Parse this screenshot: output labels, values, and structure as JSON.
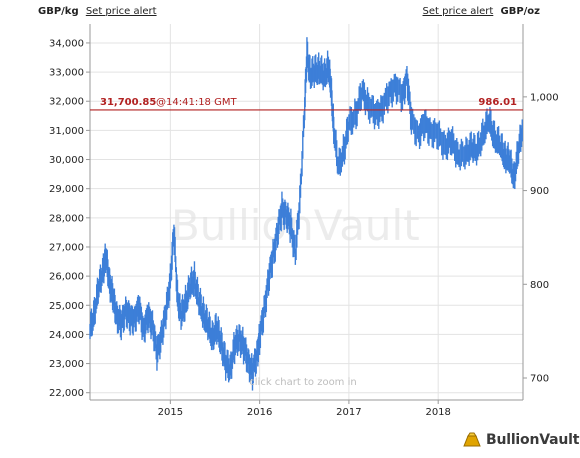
{
  "header": {
    "left_unit": "GBP/kg",
    "left_link": "Set price alert",
    "right_link": "Set price alert",
    "right_unit": "GBP/oz"
  },
  "watermark": "BullionVault",
  "zoom_hint": "click chart to zoom in",
  "logo_text": "BullionVault",
  "current_price": {
    "kg_value": "31,700.85",
    "time": "@14:41:18 GMT",
    "oz_value": "986.01",
    "value": 31700.85,
    "color": "#b22222"
  },
  "chart_data": {
    "type": "line",
    "title": "",
    "xlabel": "",
    "ylabel": "",
    "series_color": "#3d7fd8",
    "grid": true,
    "xlim": [
      2014.1,
      2018.95
    ],
    "ylim": [
      21750,
      34650
    ],
    "x_ticks": [
      {
        "value": 2015,
        "label": "2015"
      },
      {
        "value": 2016,
        "label": "2016"
      },
      {
        "value": 2017,
        "label": "2017"
      },
      {
        "value": 2018,
        "label": "2018"
      }
    ],
    "y_left_ticks": [
      {
        "value": 22000,
        "label": "22,000"
      },
      {
        "value": 23000,
        "label": "23,000"
      },
      {
        "value": 24000,
        "label": "24,000"
      },
      {
        "value": 25000,
        "label": "25,000"
      },
      {
        "value": 26000,
        "label": "26,000"
      },
      {
        "value": 27000,
        "label": "27,000"
      },
      {
        "value": 28000,
        "label": "28,000"
      },
      {
        "value": 29000,
        "label": "29,000"
      },
      {
        "value": 30000,
        "label": "30,000"
      },
      {
        "value": 31000,
        "label": "31,000"
      },
      {
        "value": 32000,
        "label": "32,000"
      },
      {
        "value": 33000,
        "label": "33,000"
      },
      {
        "value": 34000,
        "label": "34,000"
      }
    ],
    "y_right_ticks": [
      {
        "value": 700,
        "label": "700"
      },
      {
        "value": 800,
        "label": "800"
      },
      {
        "value": 900,
        "label": "900"
      },
      {
        "value": 1000,
        "label": "1,000"
      }
    ],
    "right_axis_factor": 32.15,
    "series": [
      {
        "x": [
          2014.1,
          2014.15,
          2014.2,
          2014.25,
          2014.28,
          2014.32,
          2014.36,
          2014.4,
          2014.45,
          2014.5,
          2014.55,
          2014.6,
          2014.65,
          2014.7,
          2014.75,
          2014.8,
          2014.85,
          2014.9,
          2014.95,
          2015.0,
          2015.04,
          2015.08,
          2015.12,
          2015.17,
          2015.22,
          2015.27,
          2015.32,
          2015.37,
          2015.42,
          2015.47,
          2015.52,
          2015.57,
          2015.62,
          2015.67,
          2015.72,
          2015.77,
          2015.82,
          2015.87,
          2015.92,
          2015.97,
          2016.0,
          2016.05,
          2016.1,
          2016.15,
          2016.2,
          2016.25,
          2016.3,
          2016.35,
          2016.4,
          2016.45,
          2016.5,
          2016.53,
          2016.57,
          2016.62,
          2016.67,
          2016.72,
          2016.77,
          2016.8,
          2016.83,
          2016.88,
          2016.95,
          2017.0,
          2017.08,
          2017.15,
          2017.22,
          2017.3,
          2017.37,
          2017.45,
          2017.52,
          2017.6,
          2017.65,
          2017.7,
          2017.78,
          2017.85,
          2017.92,
          2018.0,
          2018.08,
          2018.15,
          2018.22,
          2018.3,
          2018.37,
          2018.43,
          2018.5,
          2018.57,
          2018.63,
          2018.7,
          2018.75,
          2018.8,
          2018.85,
          2018.9,
          2018.95
        ],
        "values": [
          24100,
          24800,
          25600,
          26300,
          26600,
          25800,
          25200,
          24700,
          24300,
          24900,
          24500,
          24600,
          24900,
          24200,
          24600,
          24400,
          23300,
          24000,
          24700,
          25900,
          27500,
          25300,
          24600,
          25100,
          25600,
          25900,
          25100,
          24700,
          24300,
          23900,
          24200,
          23700,
          23000,
          22800,
          23600,
          23900,
          23600,
          23100,
          22700,
          23300,
          23900,
          24800,
          25900,
          26700,
          27500,
          28300,
          28100,
          27700,
          26800,
          28500,
          31500,
          33600,
          32900,
          33000,
          33100,
          32800,
          33200,
          32400,
          31100,
          29700,
          30400,
          31200,
          31600,
          32300,
          31900,
          31500,
          31800,
          32200,
          32600,
          32100,
          32900,
          31300,
          30900,
          31200,
          31000,
          30800,
          30500,
          30600,
          30200,
          30100,
          30500,
          30200,
          30900,
          31300,
          30800,
          30400,
          30100,
          29900,
          29400,
          30300,
          31200
        ]
      }
    ]
  }
}
